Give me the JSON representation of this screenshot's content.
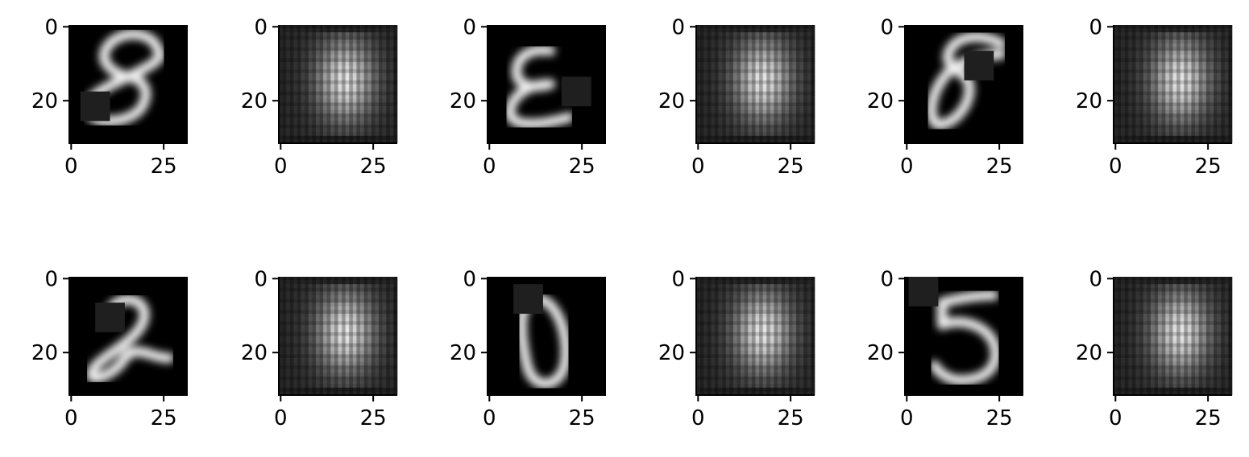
{
  "figure": {
    "grid_rows": 2,
    "grid_cols": 6,
    "background": "#ffffff",
    "colormap": "gray"
  },
  "chart_data": [
    {
      "type": "heatmap",
      "panel": "input-masked",
      "row": 0,
      "col": 0,
      "digit_shown": "8",
      "mask_patch": {
        "x": [
          3,
          11
        ],
        "y": [
          18,
          26
        ]
      },
      "xlim": [
        0,
        32
      ],
      "ylim": [
        32,
        0
      ],
      "xticks": [
        0,
        25
      ],
      "yticks": [
        0,
        20
      ],
      "xtick_labels": [
        "0",
        "25"
      ],
      "ytick_labels": [
        "0",
        "20"
      ]
    },
    {
      "type": "heatmap",
      "panel": "reconstruction",
      "row": 0,
      "col": 1,
      "xlim": [
        0,
        32
      ],
      "ylim": [
        32,
        0
      ],
      "xticks": [
        0,
        25
      ],
      "yticks": [
        0,
        20
      ],
      "xtick_labels": [
        "0",
        "25"
      ],
      "ytick_labels": [
        "0",
        "20"
      ]
    },
    {
      "type": "heatmap",
      "panel": "input-masked",
      "row": 0,
      "col": 2,
      "digit_shown": "E",
      "mask_patch": {
        "x": [
          20,
          28
        ],
        "y": [
          14,
          22
        ]
      },
      "xlim": [
        0,
        32
      ],
      "ylim": [
        32,
        0
      ],
      "xticks": [
        0,
        25
      ],
      "yticks": [
        0,
        20
      ],
      "xtick_labels": [
        "0",
        "25"
      ],
      "ytick_labels": [
        "0",
        "20"
      ]
    },
    {
      "type": "heatmap",
      "panel": "reconstruction",
      "row": 0,
      "col": 3,
      "xlim": [
        0,
        32
      ],
      "ylim": [
        32,
        0
      ],
      "xticks": [
        0,
        25
      ],
      "yticks": [
        0,
        20
      ],
      "xtick_labels": [
        "0",
        "25"
      ],
      "ytick_labels": [
        "0",
        "20"
      ]
    },
    {
      "type": "heatmap",
      "panel": "input-masked",
      "row": 0,
      "col": 4,
      "digit_shown": "8",
      "mask_patch": {
        "x": [
          16,
          24
        ],
        "y": [
          7,
          15
        ]
      },
      "xlim": [
        0,
        32
      ],
      "ylim": [
        32,
        0
      ],
      "xticks": [
        0,
        25
      ],
      "yticks": [
        0,
        20
      ],
      "xtick_labels": [
        "0",
        "25"
      ],
      "ytick_labels": [
        "0",
        "20"
      ]
    },
    {
      "type": "heatmap",
      "panel": "reconstruction",
      "row": 0,
      "col": 5,
      "xlim": [
        0,
        32
      ],
      "ylim": [
        32,
        0
      ],
      "xticks": [
        0,
        25
      ],
      "yticks": [
        0,
        20
      ],
      "xtick_labels": [
        "0",
        "25"
      ],
      "ytick_labels": [
        "0",
        "20"
      ]
    },
    {
      "type": "heatmap",
      "panel": "input-masked",
      "row": 1,
      "col": 0,
      "digit_shown": "2",
      "mask_patch": {
        "x": [
          7,
          15
        ],
        "y": [
          7,
          15
        ]
      },
      "xlim": [
        0,
        32
      ],
      "ylim": [
        32,
        0
      ],
      "xticks": [
        0,
        25
      ],
      "yticks": [
        0,
        20
      ],
      "xtick_labels": [
        "0",
        "25"
      ],
      "ytick_labels": [
        "0",
        "20"
      ]
    },
    {
      "type": "heatmap",
      "panel": "reconstruction",
      "row": 1,
      "col": 1,
      "xlim": [
        0,
        32
      ],
      "ylim": [
        32,
        0
      ],
      "xticks": [
        0,
        25
      ],
      "yticks": [
        0,
        20
      ],
      "xtick_labels": [
        "0",
        "25"
      ],
      "ytick_labels": [
        "0",
        "20"
      ]
    },
    {
      "type": "heatmap",
      "panel": "input-masked",
      "row": 1,
      "col": 2,
      "digit_shown": "0",
      "mask_patch": {
        "x": [
          7,
          15
        ],
        "y": [
          2,
          10
        ]
      },
      "xlim": [
        0,
        32
      ],
      "ylim": [
        32,
        0
      ],
      "xticks": [
        0,
        25
      ],
      "yticks": [
        0,
        20
      ],
      "xtick_labels": [
        "0",
        "25"
      ],
      "ytick_labels": [
        "0",
        "20"
      ]
    },
    {
      "type": "heatmap",
      "panel": "reconstruction",
      "row": 1,
      "col": 3,
      "xlim": [
        0,
        32
      ],
      "ylim": [
        32,
        0
      ],
      "xticks": [
        0,
        25
      ],
      "yticks": [
        0,
        20
      ],
      "xtick_labels": [
        "0",
        "25"
      ],
      "ytick_labels": [
        "0",
        "20"
      ]
    },
    {
      "type": "heatmap",
      "panel": "input-masked",
      "row": 1,
      "col": 4,
      "digit_shown": "5",
      "mask_patch": {
        "x": [
          1,
          9
        ],
        "y": [
          0,
          8
        ]
      },
      "xlim": [
        0,
        32
      ],
      "ylim": [
        32,
        0
      ],
      "xticks": [
        0,
        25
      ],
      "yticks": [
        0,
        20
      ],
      "xtick_labels": [
        "0",
        "25"
      ],
      "ytick_labels": [
        "0",
        "20"
      ]
    },
    {
      "type": "heatmap",
      "panel": "reconstruction",
      "row": 1,
      "col": 5,
      "xlim": [
        0,
        32
      ],
      "ylim": [
        32,
        0
      ],
      "xticks": [
        0,
        25
      ],
      "yticks": [
        0,
        20
      ],
      "xtick_labels": [
        "0",
        "25"
      ],
      "ytick_labels": [
        "0",
        "20"
      ]
    }
  ]
}
